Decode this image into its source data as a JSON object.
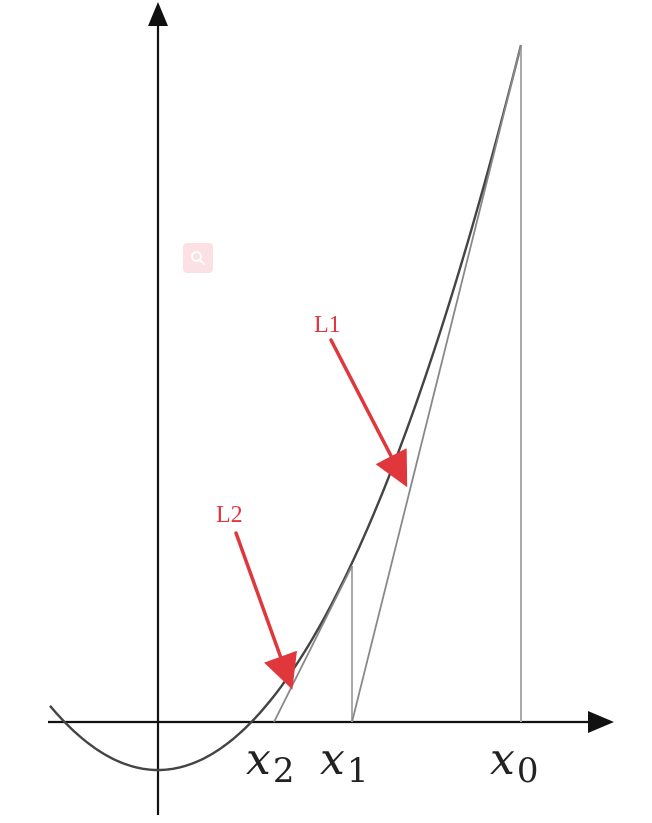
{
  "labels": {
    "x0": {
      "base": "x",
      "sub": "0"
    },
    "x1": {
      "base": "x",
      "sub": "1"
    },
    "x2": {
      "base": "x",
      "sub": "2"
    }
  },
  "annotations": {
    "l1": "L1",
    "l2": "L2"
  },
  "colors": {
    "annotation": "#e0373c",
    "curve": "#444444",
    "axis": "#111111",
    "guide": "#aaaaaa"
  },
  "icons": {
    "badge": "search-icon"
  }
}
